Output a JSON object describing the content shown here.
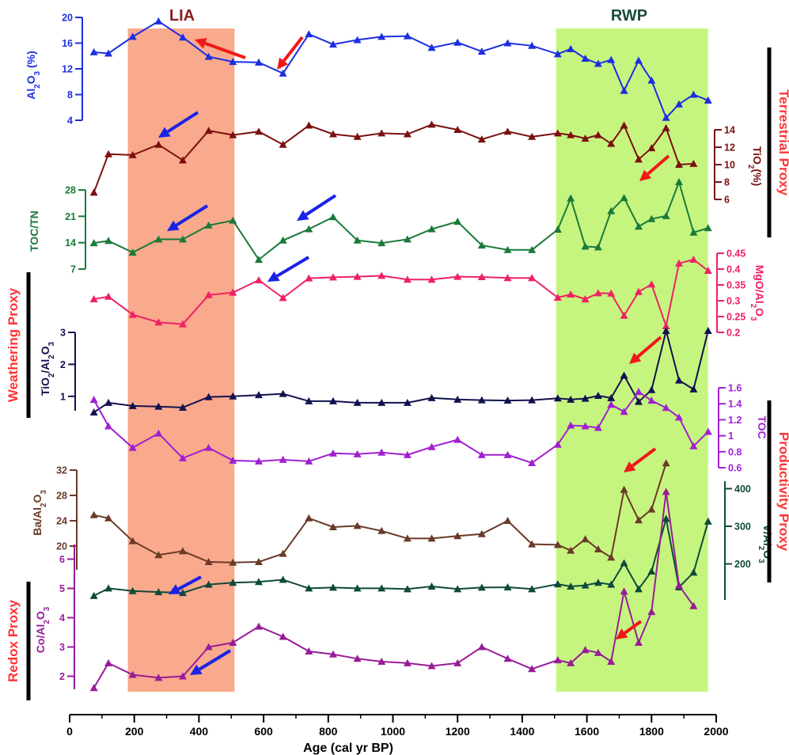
{
  "chart_data": {
    "type": "line",
    "xlabel": "Age (cal yr BP)",
    "xlim": [
      0,
      2000
    ],
    "xticks": [
      "0",
      "200",
      "400",
      "600",
      "800",
      "1000",
      "1200",
      "1400",
      "1600",
      "1800",
      "2000"
    ],
    "shaded_periods": [
      {
        "label": "LIA",
        "range": [
          180,
          510
        ],
        "color": "#f9a98c"
      },
      {
        "label": "RWP",
        "range": [
          1505,
          1975
        ],
        "color": "#c6f57f"
      }
    ],
    "proxy_groups": [
      {
        "label": "Terrestrial Proxy",
        "color": "#ff3333"
      },
      {
        "label": "Weathering Proxy",
        "color": "#ff3333"
      },
      {
        "label": "Productivity Proxy",
        "color": "#ff3333"
      },
      {
        "label": "Redox Proxy",
        "color": "#ff3333"
      }
    ],
    "series": [
      {
        "key": "al",
        "ylabel": "Al2O3 (%)",
        "color": "#1c2fe0",
        "side": "left",
        "ylim": [
          4,
          20
        ],
        "ticks": [
          "4",
          "8",
          "12",
          "16",
          "20"
        ],
        "x": [
          75,
          120,
          195,
          275,
          350,
          430,
          505,
          585,
          660,
          740,
          815,
          890,
          965,
          1045,
          1120,
          1200,
          1275,
          1355,
          1430,
          1510,
          1550,
          1595,
          1635,
          1675,
          1715,
          1760,
          1800,
          1845,
          1885,
          1930,
          1975
        ],
        "y": [
          14.6,
          14.4,
          17.0,
          19.4,
          16.9,
          13.9,
          13.1,
          13.0,
          11.3,
          17.4,
          15.8,
          16.5,
          17.0,
          17.1,
          15.3,
          16.1,
          14.7,
          16.0,
          15.6,
          14.3,
          15.1,
          13.6,
          12.8,
          13.4,
          8.6,
          13.3,
          10.2,
          4.4,
          6.5,
          8.0,
          7.1
        ]
      },
      {
        "key": "ti",
        "ylabel": "TiO2(%)",
        "color": "#7b1010",
        "side": "right",
        "ylim": [
          6,
          14
        ],
        "ticks": [
          "6",
          "8",
          "10",
          "12",
          "14"
        ],
        "x": [
          75,
          120,
          195,
          275,
          350,
          430,
          505,
          585,
          660,
          740,
          815,
          890,
          965,
          1045,
          1120,
          1200,
          1275,
          1355,
          1430,
          1510,
          1550,
          1595,
          1635,
          1675,
          1715,
          1760,
          1800,
          1845,
          1885,
          1930
        ],
        "y": [
          6.8,
          11.2,
          11.1,
          12.3,
          10.5,
          13.9,
          13.4,
          13.8,
          12.3,
          14.5,
          13.5,
          13.2,
          13.6,
          13.5,
          14.6,
          14.0,
          12.9,
          13.8,
          13.2,
          13.6,
          13.4,
          13.0,
          13.4,
          12.4,
          14.5,
          10.6,
          11.9,
          14.2,
          10.0,
          10.1
        ]
      },
      {
        "key": "toc_tn",
        "ylabel": "TOC/TN",
        "color": "#1a7a3a",
        "side": "left",
        "ylim": [
          7,
          28
        ],
        "ticks": [
          "7",
          "14",
          "21",
          "28"
        ],
        "x": [
          75,
          120,
          195,
          275,
          350,
          430,
          505,
          585,
          660,
          740,
          815,
          890,
          965,
          1045,
          1120,
          1200,
          1275,
          1355,
          1430,
          1510,
          1550,
          1595,
          1635,
          1675,
          1715,
          1760,
          1800,
          1845,
          1885,
          1930,
          1975
        ],
        "y": [
          13.9,
          14.5,
          11.4,
          14.9,
          14.9,
          18.6,
          19.9,
          9.5,
          14.6,
          17.6,
          20.8,
          14.6,
          13.9,
          14.9,
          17.6,
          19.6,
          13.3,
          12.1,
          12.1,
          17.5,
          25.8,
          13.0,
          12.8,
          22.4,
          25.9,
          18.3,
          20.3,
          21.1,
          30.1,
          16.7,
          17.9
        ]
      },
      {
        "key": "mgo",
        "ylabel": "MgO/Al2O3",
        "color": "#ef2164",
        "side": "right",
        "ylim": [
          0.2,
          0.45
        ],
        "ticks": [
          "0.2",
          "0.25",
          "0.3",
          "0.35",
          "0.4",
          "0.45"
        ],
        "x": [
          75,
          120,
          195,
          275,
          350,
          430,
          505,
          585,
          660,
          740,
          815,
          890,
          965,
          1045,
          1120,
          1200,
          1275,
          1355,
          1430,
          1510,
          1550,
          1595,
          1635,
          1675,
          1715,
          1760,
          1800,
          1845,
          1885,
          1930,
          1975
        ],
        "y": [
          0.305,
          0.313,
          0.256,
          0.232,
          0.226,
          0.318,
          0.326,
          0.365,
          0.309,
          0.371,
          0.374,
          0.376,
          0.379,
          0.367,
          0.367,
          0.376,
          0.375,
          0.372,
          0.372,
          0.31,
          0.32,
          0.305,
          0.324,
          0.323,
          0.253,
          0.328,
          0.352,
          0.22,
          0.418,
          0.43,
          0.395
        ]
      },
      {
        "key": "ti_al",
        "ylabel": "TiO2/Al2O3",
        "color": "#12124e",
        "side": "left",
        "ylim": [
          0.5,
          3
        ],
        "ticks": [
          "1",
          "2",
          "3"
        ],
        "x": [
          75,
          120,
          195,
          275,
          350,
          430,
          505,
          585,
          660,
          740,
          815,
          890,
          965,
          1045,
          1120,
          1200,
          1275,
          1355,
          1430,
          1510,
          1550,
          1595,
          1635,
          1675,
          1715,
          1760,
          1800,
          1845,
          1885,
          1930,
          1975
        ],
        "y": [
          0.5,
          0.8,
          0.7,
          0.68,
          0.65,
          0.98,
          1.0,
          1.04,
          1.08,
          0.85,
          0.85,
          0.8,
          0.8,
          0.8,
          0.95,
          0.9,
          0.88,
          0.87,
          0.88,
          0.94,
          0.9,
          0.93,
          1.02,
          0.95,
          1.65,
          0.83,
          1.2,
          3.05,
          1.5,
          1.22,
          3.05
        ]
      },
      {
        "key": "toc",
        "ylabel": "TOC",
        "color": "#a020d0",
        "side": "right",
        "ylim": [
          0.6,
          1.6
        ],
        "ticks": [
          "0.6",
          "0.8",
          "1",
          "1.2",
          "1.4",
          "1.6"
        ],
        "x": [
          75,
          120,
          195,
          275,
          350,
          430,
          505,
          585,
          660,
          740,
          815,
          890,
          965,
          1045,
          1120,
          1200,
          1275,
          1355,
          1430,
          1510,
          1550,
          1595,
          1635,
          1675,
          1715,
          1760,
          1800,
          1845,
          1885,
          1930,
          1975
        ],
        "y": [
          1.45,
          1.12,
          0.85,
          1.03,
          0.72,
          0.85,
          0.69,
          0.68,
          0.7,
          0.68,
          0.78,
          0.77,
          0.79,
          0.76,
          0.86,
          0.95,
          0.76,
          0.76,
          0.66,
          0.89,
          1.13,
          1.12,
          1.1,
          1.39,
          1.3,
          1.55,
          1.44,
          1.35,
          1.23,
          0.87,
          1.05
        ]
      },
      {
        "key": "ba",
        "ylabel": "Ba/Al2O3",
        "color": "#6a3a28",
        "side": "left",
        "ylim": [
          16,
          32
        ],
        "ticks": [
          "20",
          "24",
          "28",
          "32"
        ],
        "x": [
          75,
          120,
          195,
          275,
          350,
          430,
          505,
          585,
          660,
          740,
          815,
          890,
          965,
          1045,
          1120,
          1200,
          1275,
          1355,
          1430,
          1510,
          1550,
          1595,
          1635,
          1675,
          1715,
          1760,
          1800,
          1845
        ],
        "y": [
          24.9,
          24.4,
          20.8,
          18.6,
          19.2,
          17.5,
          17.4,
          17.5,
          18.8,
          24.4,
          23.0,
          23.2,
          22.4,
          21.2,
          21.2,
          21.6,
          21.9,
          24.0,
          20.3,
          20.2,
          19.3,
          21.1,
          19.5,
          18.2,
          28.9,
          24.1,
          25.8,
          33.1
        ]
      },
      {
        "key": "v",
        "ylabel": "V/Al2O3",
        "color": "#0e4a3a",
        "side": "right",
        "ylim": [
          100,
          420
        ],
        "ticks": [
          "200",
          "300",
          "400"
        ],
        "x": [
          75,
          120,
          195,
          275,
          350,
          430,
          505,
          585,
          660,
          740,
          815,
          890,
          965,
          1045,
          1120,
          1200,
          1275,
          1355,
          1430,
          1510,
          1550,
          1595,
          1635,
          1675,
          1715,
          1760,
          1800,
          1845,
          1885,
          1930,
          1975
        ],
        "y": [
          115,
          135,
          128,
          125,
          123,
          145,
          150,
          152,
          158,
          135,
          137,
          135,
          135,
          133,
          140,
          133,
          137,
          138,
          133,
          146,
          140,
          143,
          150,
          145,
          202,
          133,
          180,
          320,
          138,
          177,
          313
        ]
      },
      {
        "key": "co",
        "ylabel": "Co/Al2O3",
        "color": "#981c98",
        "side": "left",
        "ylim": [
          1.5,
          6.5
        ],
        "ticks": [
          "2",
          "3",
          "4",
          "5",
          "6"
        ],
        "x": [
          75,
          120,
          195,
          275,
          350,
          430,
          505,
          585,
          660,
          740,
          815,
          890,
          965,
          1045,
          1120,
          1200,
          1275,
          1355,
          1430,
          1510,
          1550,
          1595,
          1635,
          1675,
          1715,
          1760,
          1800,
          1845,
          1885,
          1930
        ],
        "y": [
          1.6,
          2.45,
          2.05,
          1.95,
          2.0,
          3.0,
          3.15,
          3.7,
          3.35,
          2.85,
          2.75,
          2.6,
          2.5,
          2.45,
          2.35,
          2.45,
          3.0,
          2.6,
          2.25,
          2.55,
          2.45,
          2.9,
          2.8,
          2.5,
          4.9,
          3.15,
          4.2,
          8.3,
          5.1,
          4.4
        ]
      }
    ],
    "arrows": [
      {
        "color": "red",
        "at": 240
      },
      {
        "color": "red",
        "at": 640
      },
      {
        "color": "blue",
        "at": 265
      },
      {
        "color": "red",
        "at": 1760
      },
      {
        "color": "blue",
        "at": 290
      },
      {
        "color": "blue",
        "at": 680
      },
      {
        "color": "blue",
        "at": 650
      },
      {
        "color": "red",
        "at": 1755
      },
      {
        "color": "red",
        "at": 1730
      },
      {
        "color": "blue",
        "at": 300
      },
      {
        "color": "red",
        "at": 1730
      },
      {
        "color": "blue",
        "at": 365
      }
    ]
  }
}
